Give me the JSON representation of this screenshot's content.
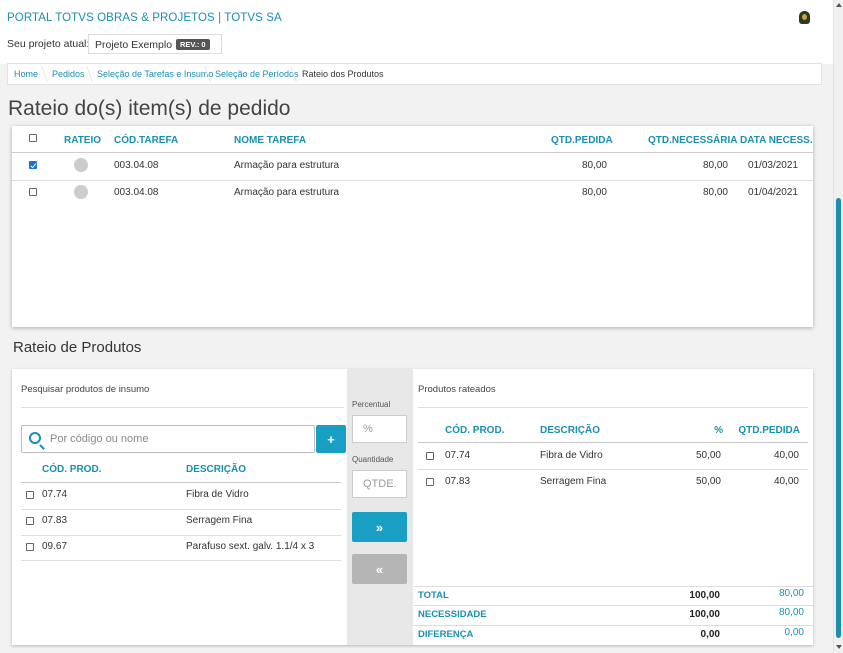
{
  "header": {
    "portal_title": "PORTAL TOTVS OBRAS & PROJETOS | TOTVS SA",
    "project_label": "Seu projeto atual:",
    "project_name": "Projeto Exemplo",
    "rev_badge": "REV.: 0"
  },
  "breadcrumb": {
    "items": [
      "Home",
      "Pedidos",
      "Seleção de Tarefas e Insumo",
      "Seleção de Períodos",
      "Rateio dos Produtos"
    ]
  },
  "page_title": "Rateio do(s) item(s) de pedido",
  "tasks_table": {
    "columns": [
      "RATEIO",
      "CÓD.TAREFA",
      "NOME TAREFA",
      "QTD.PEDIDA",
      "QTD.NECESSÁRIA",
      "DATA NECESS."
    ],
    "rows": [
      {
        "checked": true,
        "cod": "003.04.08",
        "nome": "Armação para estrutura",
        "qtd_pedida": "80,00",
        "qtd_necessaria": "80,00",
        "data": "01/03/2021"
      },
      {
        "checked": false,
        "cod": "003.04.08",
        "nome": "Armação para estrutura",
        "qtd_pedida": "80,00",
        "qtd_necessaria": "80,00",
        "data": "01/04/2021"
      }
    ]
  },
  "rateio": {
    "section_title": "Rateio de Produtos",
    "search": {
      "heading": "Pesquisar produtos de insumo",
      "placeholder": "Por código ou nome",
      "add_label": "+",
      "columns": [
        "CÓD. PROD.",
        "DESCRIÇÃO"
      ],
      "rows": [
        {
          "cod": "07.74",
          "desc": "Fibra de Vidro"
        },
        {
          "cod": "07.83",
          "desc": "Serragem Fina"
        },
        {
          "cod": "09.67",
          "desc": "Parafuso sext. galv. 1.1/4 x 3"
        }
      ]
    },
    "middle": {
      "percent_label": "Percentual",
      "percent_placeholder": "%",
      "qty_label": "Quantidade",
      "qty_placeholder": "QTDE.",
      "move_right": "»",
      "move_left": "«"
    },
    "allocated": {
      "heading": "Produtos rateados",
      "columns": [
        "CÓD. PROD.",
        "DESCRIÇÃO",
        "%",
        "QTD.PEDIDA"
      ],
      "rows": [
        {
          "cod": "07.74",
          "desc": "Fibra de Vidro",
          "pct": "50,00",
          "qtd": "40,00"
        },
        {
          "cod": "07.83",
          "desc": "Serragem Fina",
          "pct": "50,00",
          "qtd": "40,00"
        }
      ],
      "totals": [
        {
          "label": "TOTAL",
          "pct": "100,00",
          "qtd": "80,00"
        },
        {
          "label": "NECESSIDADE",
          "pct": "100,00",
          "qtd": "80,00"
        },
        {
          "label": "DIFERENÇA",
          "pct": "0,00",
          "qtd": "0,00"
        }
      ]
    }
  },
  "colors": {
    "accent": "#1a8fb0",
    "button": "#1a9fc4",
    "disabled_button": "#b5b5b5",
    "checkbox_checked": "#1a73c8"
  }
}
